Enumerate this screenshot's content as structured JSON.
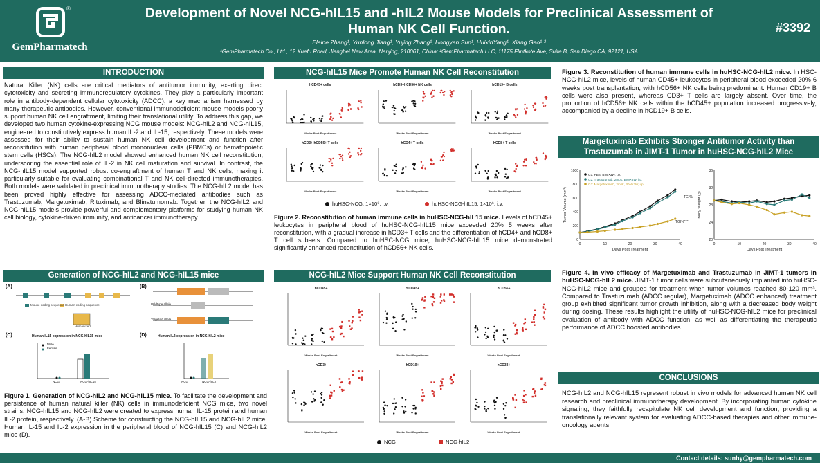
{
  "header": {
    "logo_text": "GemPharmatech",
    "logo_mark": "®",
    "title_line1": "Development of Novel NCG-hIL15 and -hIL2 Mouse Models for Preclinical Assessment of",
    "title_line2": "Human NK Cell Function.",
    "authors": "Elaine Zhang¹, Yunlong Jiang¹, Yujing Zhang¹, Hongyan Sun¹, HuixinYang¹, Xiang Gao¹˒²",
    "affiliations": "¹GemPharmatech Co., Ltd., 12 Xuefu Road, Jiangbei New Area, Nanjing, 210061, China; ²GemPharmatech LLC, 11175 Flintkote Ave, Suite B, San Diego CA, 92121, USA",
    "poster_id": "#3392"
  },
  "intro": {
    "heading": "INTRODUCTION",
    "text": "Natural Killer (NK) cells are critical mediators of antitumor immunity, exerting direct cytotoxicity and secreting immunoregulatory cytokines. They play a particularly important role in antibody-dependent cellular cytotoxicity (ADCC), a key mechanism harnessed by many therapeutic antibodies. However, conventional immunodeficient mouse models poorly support human NK cell engraftment, limiting their translational utility. To address this gap, we developed two human cytokine-expressing NCG mouse models: NCG-hIL2 and NCG-hIL15, engineered to constitutively express human IL-2 and IL-15, respectively. These models were assessed for their ability to sustain human NK cell development and function after reconstitution with human peripheral blood mononuclear cells (PBMCs) or hematopoietic stem cells (HSCs). The NCG-hIL2 model showed enhanced human NK cell reconstitution, underscoring the essential role of IL-2 in NK cell maturation and survival. In contrast, the NCG-hIL15 model supported robust co-engraftment of human T and NK cells, making it particularly suitable for evaluating combinational T and NK cell-directed immunotherapies. Both models were validated in preclinical immunotherapy studies. The NCG-hIL2 model has been proved highly effective for assessing ADCC-mediated antibodies such as Trastuzumab, Margetuximab, Rituximab, and Blinatumomab. Together, the NCG-hIL2 and NCG-hIL15 models provide powerful and complementary platforms for studying human NK cell biology, cytokine-driven immunity, and anticancer immunotherapy."
  },
  "generation": {
    "heading": "Generation of NCG-hIL2 and NCG-hIL15 mice",
    "panel_a": "(A)",
    "panel_b": "(B)",
    "panel_c": "(C)",
    "panel_d": "(D)",
    "c_title": "Human IL15 expression in NCG-hIL15 mice",
    "d_title": "Human IL2 expression in NCG-hIL2 mice",
    "c_legend_male": "Male",
    "c_legend_female": "Female",
    "c_x1": "NCG",
    "c_x2": "NCG-hIL15",
    "d_x1": "NCG",
    "d_x2": "NCG-hIL2",
    "a_leg1": "Mouse coding sequence",
    "a_leg2": "Human coding sequence",
    "a_box": "Humanized",
    "b_row1": "Wildtype allele",
    "b_row2": "Targeted allele",
    "caption_bold": "Figure 1. Generation of NCG-hIL2 and NCG-hIL15 mice.",
    "caption": " To facilitate the development and persistence of human natural killer (NK) cells in immunodeficient NCG mice, two novel strains, NCG-hIL15 and NCG-hIL2 were created to express human IL-15 protein and human IL-2 protein, respectively. (A-B) Scheme for constructing the NCG-hIL15 and NCG-hIL2 mice. Human IL-15 and IL-2 expression in the peripheral blood of NCG-hIL15 (C) and NCG-hIL2 mice (D)."
  },
  "fig2": {
    "heading": "NCG-hIL15 Mice Promote Human NK Cell Reconstitution",
    "panels": [
      "hCD45+ cells",
      "hCD3+hCD56+ NK cells",
      "hCD19+ B cells",
      "hCD3+ hCD56+ T cells",
      "hCD4+ T cells",
      "hCD8+ T cells"
    ],
    "xlabel": "Weeks Post Engraftment",
    "legend1": "huHSC-NCG, 1×10⁶, i.v.",
    "legend2": "huHSC-NCG-hIL15, 1×10⁶, i.v.",
    "color1": "#111111",
    "color2": "#d2302c",
    "caption_bold": "Figure 2. Reconstitution of human immune cells in huHSC-NCG-hIL15 mice.",
    "caption": " Levels of hCD45+ leukocytes in peripheral blood of huHSC-NCG-hIL15 mice exceeded 20% 5 weeks after reconstitution, with a gradual increase in hCD3+ T cells and the differentiation of hCD4+ and hCD8+ T cell subsets. Compared to huHSC-NCG mice, huHSC-NCG-hIL15 mice demonstrated significantly enhanced reconstitution of hCD56+ NK cells."
  },
  "fig3": {
    "heading": "NCG-hIL2 Mice Support Human NK Cell Reconstitution",
    "panels": [
      "hCD45+",
      "mCD45+",
      "hCD56+",
      "hCD3+",
      "hCD19+",
      "hCD33+"
    ],
    "xlabel": "Weeks Post Engraftment",
    "legend1": "NCG",
    "legend2": "NCG-hIL2",
    "caption_bold": "Figure 3. Reconstitution of human immune cells in huHSC-NCG-hIL2 mice.",
    "caption": " In HSC-NCG-hIL2 mice, levels of human CD45+ leukocytes in peripheral blood exceeded 20% 6 weeks post transplantation, with hCD56+ NK cells being predominant. Human CD19+ B cells were also present, whereas CD3+ T cells are largely absent. Over time, the proportion of hCD56+ NK cells within the hCD45+ population increased progressively, accompanied by a decline in hCD19+ B cells."
  },
  "fig4": {
    "heading": "Margetuximab Exhibits Stronger Antitumor Activity than Trastuzumab in JIMT-1 Tumor in huHSC-NCG-hIL2 Mice",
    "legend": [
      "G1: PBS, BIW×3W, i.p.",
      "G2: Trastuzumab, 2mpk, BIW×3W, i.p.",
      "G3: Margetuximab, 2mpk, BIW×3W, i.p."
    ],
    "colors": [
      "#111111",
      "#2a7a78",
      "#c9a227"
    ],
    "tgi1": "TGI%",
    "tgi2": "TGI%***",
    "y1label": "Tumor Volume (mm³)",
    "y2label": "Body Weight (g)",
    "xlabel": "Days Post Treatment",
    "caption_bold": "Figure 4. In vivo efficacy of Margetuximab and Trastuzumab in JIMT-1 tumors in huHSC-NCG-hIL2 mice.",
    "caption": " JIMT-1 tumor cells were subcutaneously implanted into huHSC-NCG-hIL2 mice and grouped for treatment when tumor volumes reached 80-120 mm³. Compared to Trastuzumab (ADCC regular), Margetuximab (ADCC enhanced) treatment group exhibited significant tumor growth inhibition, along with a decreased body weight during dosing. These results highlight the utility of huHSC-NCG-hIL2 mice for preclinical evaluation of antibody with ADCC function, as well as differentiating the therapeutic performance of ADCC boosted antibodies."
  },
  "chart_data": [
    {
      "type": "line",
      "title": "",
      "xlabel": "Days Post Treatment",
      "ylabel": "Tumor Volume (mm³)",
      "xlim": [
        0,
        40
      ],
      "ylim": [
        0,
        1000
      ],
      "x": [
        0,
        3,
        7,
        10,
        14,
        17,
        21,
        24,
        28,
        31,
        35,
        38
      ],
      "series": [
        {
          "name": "G1: PBS, BIW×3W, i.p.",
          "values": [
            100,
            120,
            150,
            185,
            230,
            280,
            340,
            400,
            480,
            560,
            640,
            720
          ]
        },
        {
          "name": "G2: Trastuzumab, 2mpk, BIW×3W, i.p.",
          "values": [
            100,
            115,
            145,
            175,
            215,
            265,
            320,
            380,
            450,
            530,
            610,
            690
          ]
        },
        {
          "name": "G3: Margetuximab, 2mpk, BIW×3W, i.p.",
          "values": [
            100,
            105,
            115,
            125,
            140,
            150,
            165,
            180,
            200,
            225,
            260,
            300
          ]
        }
      ]
    },
    {
      "type": "line",
      "title": "",
      "xlabel": "Days Post Treatment",
      "ylabel": "Body Weight (g)",
      "xlim": [
        0,
        40
      ],
      "ylim": [
        20,
        36
      ],
      "x": [
        0,
        3,
        7,
        10,
        14,
        17,
        21,
        24,
        28,
        31,
        35,
        38
      ],
      "series": [
        {
          "name": "G1",
          "values": [
            29,
            29.2,
            28.8,
            28.6,
            28.8,
            29,
            28.6,
            28.8,
            29.4,
            29.6,
            30,
            30.2
          ]
        },
        {
          "name": "G2",
          "values": [
            29,
            28.8,
            28.4,
            28.6,
            28.4,
            28.8,
            28.2,
            28,
            29,
            29.2,
            30.4,
            29.6
          ]
        },
        {
          "name": "G3",
          "values": [
            29,
            28.6,
            28.2,
            28.4,
            28,
            27.6,
            26.8,
            25.8,
            26.2,
            26.4,
            25.6,
            25.4
          ]
        }
      ]
    }
  ],
  "conclusions": {
    "heading": "CONCLUSIONS",
    "text": "NCG-hIL2 and NCG-hIL15 represent robust in vivo models for advanced human NK cell research and preclinical immunotherapy development. By incorporating human cytokine signaling, they faithfully recapitulate NK cell development and function, providing a translationally relevant system for evaluating ADCC-based therapies and other immune-oncology agents."
  },
  "footer": {
    "contact": "Contact details: sunhy@gempharmatech.com"
  }
}
